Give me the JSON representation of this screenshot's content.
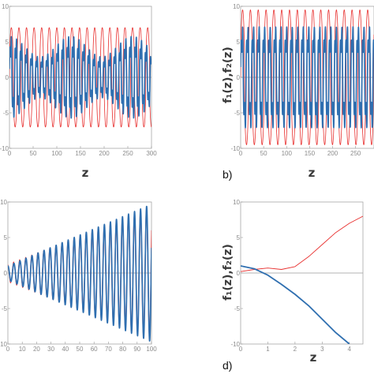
{
  "chart_data": [
    {
      "type": "line",
      "panel_letter": "",
      "xlabel": "z",
      "ylabel": "",
      "xlim": [
        0,
        300
      ],
      "ylim": [
        -10,
        10
      ],
      "xticks": [
        "0",
        "50",
        "100",
        "150",
        "200",
        "250",
        "300"
      ],
      "yticks": [
        "-10",
        "-5",
        "0",
        "5",
        "10"
      ],
      "series": [
        {
          "color": "#e8302f",
          "description_only": true
        },
        {
          "color": "#2f6fb0",
          "description_only": true
        }
      ],
      "model": {
        "red": {
          "amp": 7,
          "period": 16
        },
        "blue": {
          "amp": 6.5,
          "period": 11,
          "beat_period": 130
        }
      }
    },
    {
      "type": "line",
      "panel_letter": "b)",
      "xlabel": "z",
      "ylabel": "f₁(z),f₂(z)",
      "xlim": [
        0,
        290
      ],
      "ylim": [
        -10,
        10
      ],
      "xticks": [
        "0",
        "50",
        "100",
        "150",
        "200",
        "250"
      ],
      "yticks": [
        "-10",
        "-5",
        "0",
        "5",
        "10"
      ],
      "series": [
        {
          "color": "#e8302f",
          "description_only": true
        },
        {
          "color": "#2f6fb0",
          "description_only": true
        }
      ],
      "model": {
        "red": {
          "amp": 9.5,
          "period": 17
        },
        "blue": {
          "amp": 8,
          "period": 12
        }
      }
    },
    {
      "type": "line",
      "panel_letter": "",
      "xlabel": "z",
      "ylabel": "",
      "xlim": [
        0,
        100
      ],
      "ylim": [
        -10,
        10
      ],
      "xticks": [
        "0",
        "10",
        "20",
        "30",
        "40",
        "50",
        "60",
        "70",
        "80",
        "90",
        "100"
      ],
      "yticks": [
        "-10",
        "-5",
        "0",
        "5",
        "10"
      ],
      "series": [
        {
          "color": "#e8302f",
          "description_only": true
        },
        {
          "color": "#2f6fb0",
          "description_only": true
        }
      ],
      "model": {
        "start_amp": 1,
        "end_amp": 9.7,
        "period": 4.2
      }
    },
    {
      "type": "line",
      "panel_letter": "d)",
      "xlabel": "z",
      "ylabel": "f₁(z),f₂(z)",
      "xlim": [
        0,
        4.5
      ],
      "ylim": [
        -10,
        10
      ],
      "xticks": [
        "0",
        "1",
        "2",
        "3",
        "4"
      ],
      "yticks": [
        "-10",
        "-5",
        "0",
        "5",
        "10"
      ],
      "series": [
        {
          "color": "#e8302f",
          "x": [
            0,
            0.5,
            1,
            1.5,
            2,
            2.5,
            3,
            3.5,
            4,
            4.5
          ],
          "y": [
            0.2,
            0.5,
            0.7,
            0.5,
            0.9,
            2.3,
            4.0,
            5.7,
            7.0,
            8.0
          ]
        },
        {
          "color": "#2f6fb0",
          "x": [
            0,
            0.5,
            1,
            1.5,
            2,
            2.5,
            3,
            3.5,
            4
          ],
          "y": [
            1.0,
            0.6,
            -0.3,
            -1.6,
            -3.0,
            -4.6,
            -6.5,
            -8.4,
            -10.0
          ]
        }
      ]
    }
  ]
}
